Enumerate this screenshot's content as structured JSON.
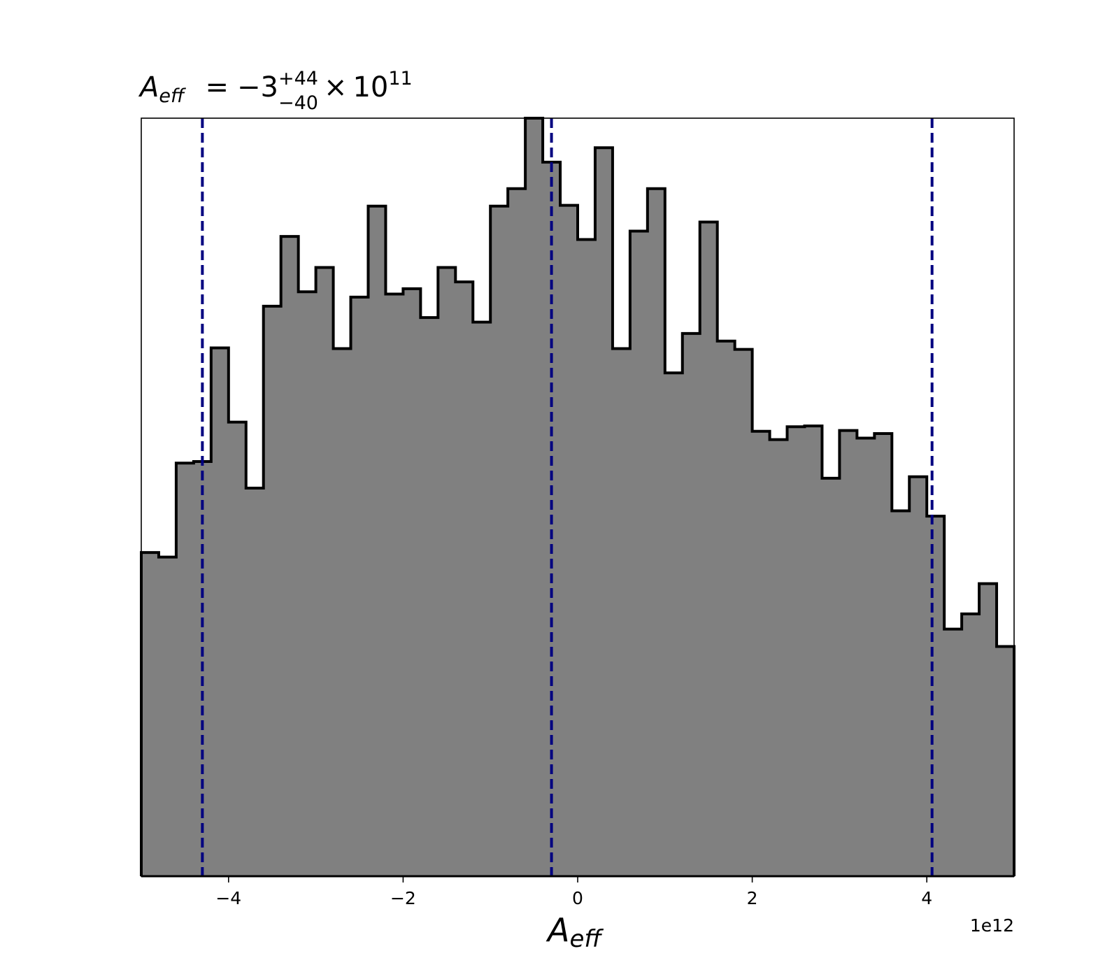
{
  "chart_data": {
    "type": "histogram",
    "title": {
      "symbol": "A",
      "symbol_sub": "eff",
      "equals": "=",
      "value": "−3",
      "upper": "+44",
      "lower": "−40",
      "times": "×",
      "base": "10",
      "exponent": "11"
    },
    "xlabel": {
      "symbol": "A",
      "sub": "eff"
    },
    "x_offset_label": "1e12",
    "xlim": [
      -5.0,
      5.0
    ],
    "ylim": [
      0,
      1000
    ],
    "x_unit_scale": 1000000000000.0,
    "bin_edges": [
      -5.0,
      -4.8,
      -4.6,
      -4.4,
      -4.2,
      -4.0,
      -3.8,
      -3.6,
      -3.4,
      -3.2,
      -3.0,
      -2.8,
      -2.6,
      -2.4,
      -2.2,
      -2.0,
      -1.8,
      -1.6,
      -1.4,
      -1.2,
      -1.0,
      -0.8,
      -0.6,
      -0.4,
      -0.2,
      0.0,
      0.2,
      0.4,
      0.6,
      0.8,
      1.0,
      1.2,
      1.4,
      1.6,
      1.8,
      2.0,
      2.2,
      2.4,
      2.6,
      2.8,
      3.0,
      3.2,
      3.4,
      3.6,
      3.8,
      4.0,
      4.2,
      4.4,
      4.6,
      4.8,
      5.0
    ],
    "counts": [
      427,
      421,
      545,
      547,
      697,
      599,
      512,
      752,
      844,
      771,
      803,
      696,
      764,
      884,
      768,
      775,
      737,
      803,
      784,
      731,
      884,
      907,
      1000,
      942,
      885,
      840,
      961,
      696,
      851,
      907,
      664,
      716,
      863,
      706,
      695,
      587,
      576,
      593,
      594,
      525,
      588,
      578,
      584,
      482,
      527,
      475,
      326,
      346,
      386,
      303
    ],
    "quantile_lines": [
      -4.3,
      -0.3,
      4.06
    ],
    "x_ticks": [
      {
        "value": -4,
        "label": "−4"
      },
      {
        "value": -2,
        "label": "−2"
      },
      {
        "value": 0,
        "label": "0"
      },
      {
        "value": 2,
        "label": "2"
      },
      {
        "value": 4,
        "label": "4"
      }
    ],
    "colors": {
      "fill": "#808080",
      "edge": "#000000",
      "quantile_line": "#000080"
    }
  }
}
